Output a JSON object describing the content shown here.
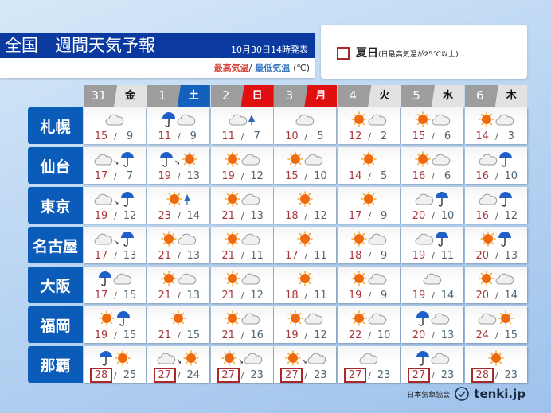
{
  "header": {
    "title": "全国　週間天気予報",
    "issued": "10月30日14時発表",
    "max_label": "最高気温",
    "slash": "/",
    "min_label": "最低気温",
    "unit": "(℃)"
  },
  "legend": {
    "label": "夏日",
    "note": "(日最高気温が25℃以上)"
  },
  "colors": {
    "title_bg": "#0a3aa0",
    "city_bg": "#0b5cb8",
    "saturday": "#1560bd",
    "holiday": "#e01010",
    "summer_border": "#a8282c",
    "max_temp": "#a8383c",
    "min_temp": "#4d6677"
  },
  "days": [
    {
      "date": "31",
      "weekday": "金",
      "type": "weekday"
    },
    {
      "date": "1",
      "weekday": "土",
      "type": "saturday"
    },
    {
      "date": "2",
      "weekday": "日",
      "type": "holiday"
    },
    {
      "date": "3",
      "weekday": "月",
      "type": "holiday"
    },
    {
      "date": "4",
      "weekday": "火",
      "type": "weekday"
    },
    {
      "date": "5",
      "weekday": "水",
      "type": "weekday"
    },
    {
      "date": "6",
      "weekday": "木",
      "type": "weekday"
    }
  ],
  "cities": [
    {
      "name": "札幌",
      "forecast": [
        {
          "icons": [
            "cloud"
          ],
          "max": "15",
          "min": "9"
        },
        {
          "icons": [
            "rain",
            "cloud"
          ],
          "max": "11",
          "min": "9"
        },
        {
          "icons": [
            "cloud",
            "snow"
          ],
          "max": "11",
          "min": "7"
        },
        {
          "icons": [
            "cloud"
          ],
          "max": "10",
          "min": "5"
        },
        {
          "icons": [
            "sun",
            "cloud"
          ],
          "max": "12",
          "min": "2"
        },
        {
          "icons": [
            "sun",
            "cloud"
          ],
          "max": "15",
          "min": "6"
        },
        {
          "icons": [
            "sun",
            "cloud"
          ],
          "max": "14",
          "min": "3"
        }
      ]
    },
    {
      "name": "仙台",
      "forecast": [
        {
          "icons": [
            "cloud",
            "rain"
          ],
          "then": true,
          "max": "17",
          "min": "7"
        },
        {
          "icons": [
            "rain",
            "sun"
          ],
          "then": true,
          "max": "19",
          "min": "13"
        },
        {
          "icons": [
            "sun",
            "cloud"
          ],
          "max": "19",
          "min": "12"
        },
        {
          "icons": [
            "sun",
            "cloud"
          ],
          "max": "15",
          "min": "10"
        },
        {
          "icons": [
            "sun"
          ],
          "max": "14",
          "min": "5"
        },
        {
          "icons": [
            "sun",
            "cloud"
          ],
          "max": "16",
          "min": "6"
        },
        {
          "icons": [
            "cloud",
            "rain"
          ],
          "max": "16",
          "min": "10"
        }
      ]
    },
    {
      "name": "東京",
      "forecast": [
        {
          "icons": [
            "cloud",
            "rain"
          ],
          "then": true,
          "max": "19",
          "min": "12"
        },
        {
          "icons": [
            "sun",
            "snow"
          ],
          "max": "23",
          "min": "14"
        },
        {
          "icons": [
            "sun",
            "cloud"
          ],
          "max": "21",
          "min": "13"
        },
        {
          "icons": [
            "sun"
          ],
          "max": "18",
          "min": "12"
        },
        {
          "icons": [
            "sun"
          ],
          "max": "17",
          "min": "9"
        },
        {
          "icons": [
            "cloud",
            "rain"
          ],
          "max": "20",
          "min": "10"
        },
        {
          "icons": [
            "cloud",
            "rain"
          ],
          "max": "16",
          "min": "12"
        }
      ]
    },
    {
      "name": "名古屋",
      "forecast": [
        {
          "icons": [
            "cloud",
            "rain"
          ],
          "then": true,
          "max": "17",
          "min": "13"
        },
        {
          "icons": [
            "sun",
            "cloud"
          ],
          "max": "21",
          "min": "13"
        },
        {
          "icons": [
            "sun",
            "cloud"
          ],
          "max": "21",
          "min": "11"
        },
        {
          "icons": [
            "sun"
          ],
          "max": "17",
          "min": "11"
        },
        {
          "icons": [
            "sun",
            "cloud"
          ],
          "max": "18",
          "min": "9"
        },
        {
          "icons": [
            "cloud",
            "rain"
          ],
          "max": "19",
          "min": "11"
        },
        {
          "icons": [
            "sun",
            "rain"
          ],
          "max": "20",
          "min": "13"
        }
      ]
    },
    {
      "name": "大阪",
      "forecast": [
        {
          "icons": [
            "rain",
            "cloud"
          ],
          "max": "17",
          "min": "15"
        },
        {
          "icons": [
            "sun",
            "cloud"
          ],
          "max": "21",
          "min": "13"
        },
        {
          "icons": [
            "sun",
            "cloud"
          ],
          "max": "21",
          "min": "12"
        },
        {
          "icons": [
            "sun"
          ],
          "max": "18",
          "min": "11"
        },
        {
          "icons": [
            "sun",
            "cloud"
          ],
          "max": "19",
          "min": "9"
        },
        {
          "icons": [
            "cloud"
          ],
          "max": "19",
          "min": "14"
        },
        {
          "icons": [
            "sun",
            "cloud"
          ],
          "max": "20",
          "min": "14"
        }
      ]
    },
    {
      "name": "福岡",
      "forecast": [
        {
          "icons": [
            "sun",
            "rain"
          ],
          "max": "19",
          "min": "15"
        },
        {
          "icons": [
            "sun"
          ],
          "max": "21",
          "min": "15"
        },
        {
          "icons": [
            "sun",
            "cloud"
          ],
          "max": "21",
          "min": "16"
        },
        {
          "icons": [
            "sun",
            "cloud"
          ],
          "max": "19",
          "min": "12"
        },
        {
          "icons": [
            "sun",
            "cloud"
          ],
          "max": "22",
          "min": "10"
        },
        {
          "icons": [
            "rain",
            "cloud"
          ],
          "max": "20",
          "min": "13"
        },
        {
          "icons": [
            "cloud",
            "sun"
          ],
          "max": "24",
          "min": "15"
        }
      ]
    },
    {
      "name": "那覇",
      "forecast": [
        {
          "icons": [
            "rain",
            "sun"
          ],
          "max": "28",
          "min": "25",
          "summer": true
        },
        {
          "icons": [
            "cloud",
            "sun"
          ],
          "then": true,
          "max": "27",
          "min": "24",
          "summer": true
        },
        {
          "icons": [
            "sun",
            "cloud"
          ],
          "then": true,
          "max": "27",
          "min": "23",
          "summer": true
        },
        {
          "icons": [
            "sun",
            "cloud"
          ],
          "then": true,
          "max": "27",
          "min": "23",
          "summer": true
        },
        {
          "icons": [
            "cloud"
          ],
          "max": "27",
          "min": "23",
          "summer": true
        },
        {
          "icons": [
            "rain",
            "cloud"
          ],
          "max": "27",
          "min": "23",
          "summer": true
        },
        {
          "icons": [
            "sun"
          ],
          "max": "28",
          "min": "23",
          "summer": true
        }
      ]
    }
  ],
  "footer": {
    "org": "日本気象協会",
    "brand": "tenki.jp"
  }
}
